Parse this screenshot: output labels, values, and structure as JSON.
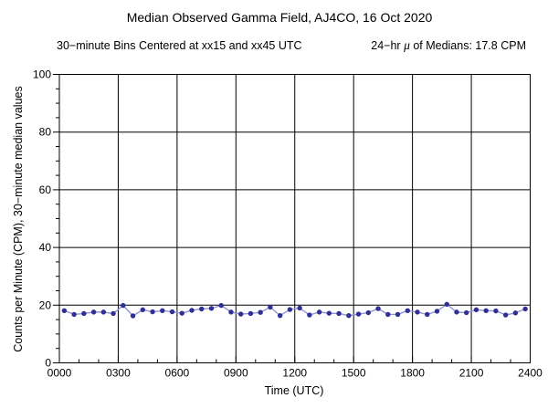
{
  "figure": {
    "title": "Median Observed Gamma Field, AJ4CO, 16 Oct 2020",
    "subtitle_left": "30−minute Bins Centered at xx15 and xx45 UTC",
    "subtitle_right_prefix": "24−hr ",
    "subtitle_right_mu": "μ",
    "subtitle_right_suffix": " of Medians: 17.8 CPM"
  },
  "chart_data": {
    "type": "line",
    "title": "Median Observed Gamma Field, AJ4CO, 16 Oct 2020",
    "subtitle": "30−minute Bins Centered at xx15 and xx45 UTC    24−hr μ of Medians: 17.8 CPM",
    "xlabel": "Time (UTC)",
    "ylabel": "Counts per Minute (CPM), 30−minute median values",
    "mean_of_medians_cpm": 17.8,
    "xlim_minutes": [
      0,
      1440
    ],
    "ylim": [
      0,
      100
    ],
    "x_major_tick_labels": [
      "0000",
      "0300",
      "0600",
      "0900",
      "1200",
      "1500",
      "1800",
      "2100",
      "2400"
    ],
    "x_major_every_minutes": 180,
    "x_minor_every_minutes": 60,
    "y_major_ticks": [
      0,
      20,
      40,
      60,
      80,
      100
    ],
    "y_minor_every": 5,
    "grid": true,
    "legend": "none",
    "marker": "filled-circle",
    "colors": {
      "marker": "#2f2f96",
      "line": "#9494d2",
      "axis": "#000000",
      "grid": "#000000",
      "background": "#ffffff"
    },
    "x": [
      "0015",
      "0045",
      "0115",
      "0145",
      "0215",
      "0245",
      "0315",
      "0345",
      "0415",
      "0445",
      "0515",
      "0545",
      "0615",
      "0645",
      "0715",
      "0745",
      "0815",
      "0845",
      "0915",
      "0945",
      "1015",
      "1045",
      "1115",
      "1145",
      "1215",
      "1245",
      "1315",
      "1345",
      "1415",
      "1445",
      "1515",
      "1545",
      "1615",
      "1645",
      "1715",
      "1745",
      "1815",
      "1845",
      "1915",
      "1945",
      "2015",
      "2045",
      "2115",
      "2145",
      "2215",
      "2245",
      "2315",
      "2345"
    ],
    "values": [
      18.1,
      16.8,
      17.1,
      17.6,
      17.6,
      17.1,
      19.9,
      16.3,
      18.4,
      17.7,
      18.1,
      17.7,
      17.2,
      18.2,
      18.7,
      18.9,
      19.9,
      17.6,
      16.9,
      17.1,
      17.5,
      19.3,
      16.4,
      18.5,
      19.0,
      16.6,
      17.6,
      17.2,
      17.1,
      16.4,
      16.9,
      17.4,
      18.8,
      16.8,
      16.8,
      18.1,
      17.6,
      16.8,
      17.9,
      20.3,
      17.6,
      17.4,
      18.4,
      18.1,
      18.0,
      16.6,
      17.3,
      18.7
    ]
  }
}
